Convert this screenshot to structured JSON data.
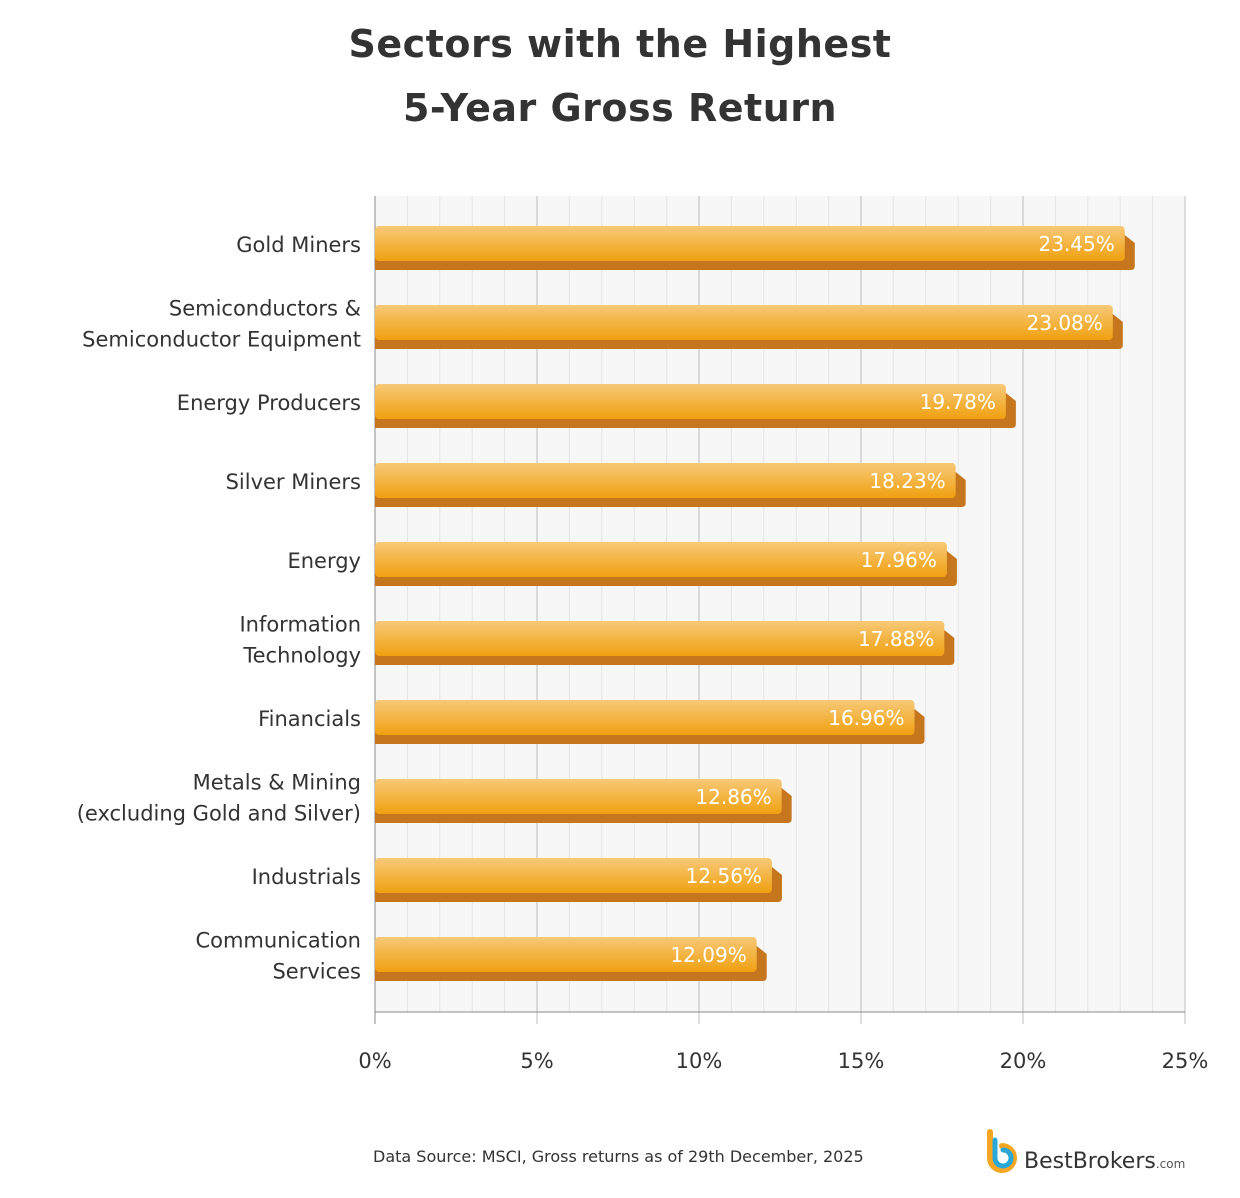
{
  "chart_data": {
    "type": "bar",
    "orientation": "horizontal",
    "title": "Sectors with the Highest 5-Year Gross Return",
    "title_lines": [
      "Sectors with the Highest",
      "5-Year Gross Return"
    ],
    "categories": [
      [
        "Gold Miners"
      ],
      [
        "Semiconductors &",
        "Semiconductor Equipment"
      ],
      [
        "Energy Producers"
      ],
      [
        "Silver Miners"
      ],
      [
        "Energy"
      ],
      [
        "Information",
        "Technology"
      ],
      [
        "Financials"
      ],
      [
        "Metals & Mining",
        "(excluding Gold and Silver)"
      ],
      [
        "Industrials"
      ],
      [
        "Communication",
        "Services"
      ]
    ],
    "values": [
      23.45,
      23.08,
      19.78,
      18.23,
      17.96,
      17.88,
      16.96,
      12.86,
      12.56,
      12.09
    ],
    "data_labels": [
      "23.45%",
      "23.08%",
      "19.78%",
      "18.23%",
      "17.96%",
      "17.88%",
      "16.96%",
      "12.86%",
      "12.56%",
      "12.09%"
    ],
    "xlim": [
      0,
      25
    ],
    "xticks": [
      "0%",
      "5%",
      "10%",
      "15%",
      "20%",
      "25%"
    ],
    "grid": true,
    "colors": {
      "bar_top": "#f7c978",
      "bar_bottom": "#f0a010",
      "bar_shadow": "#c6761c"
    }
  },
  "footer": {
    "source": "Data Source: MSCI, Gross returns as of 29th December, 2025",
    "logo": "BestBrokers",
    "logo_suffix": ".com"
  }
}
